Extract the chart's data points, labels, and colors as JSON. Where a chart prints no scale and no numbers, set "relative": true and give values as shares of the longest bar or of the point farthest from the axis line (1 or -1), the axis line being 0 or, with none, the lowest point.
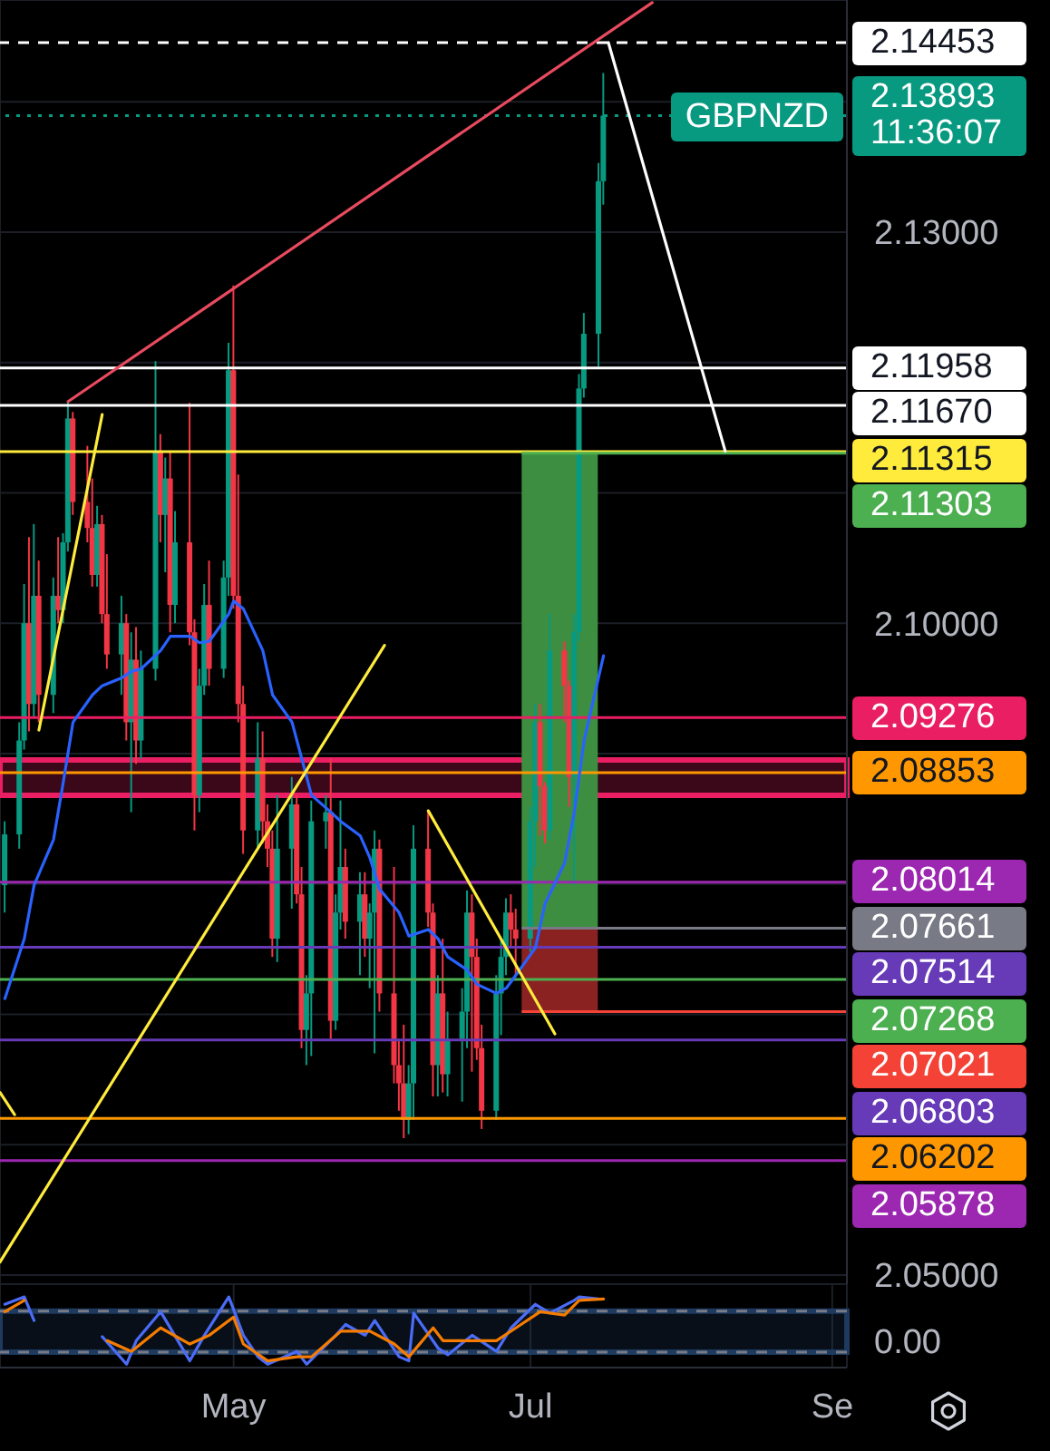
{
  "chart_data": [
    {
      "type": "candlestick",
      "tick_labels": "y",
      "grid": true,
      "xlim": [
        "--03-14",
        "--09-04"
      ],
      "xticks": [
        {
          "value": "--05-01",
          "label": "May"
        },
        {
          "value": "--07-01",
          "label": "Jul"
        },
        {
          "value": "--09-01",
          "label": "Se"
        }
      ],
      "ylim": [
        2.0493,
        2.1478
      ],
      "yticks": [
        {
          "value": 2.05,
          "label": "2.05000"
        },
        {
          "value": 2.06,
          "label": null
        },
        {
          "value": 2.07,
          "label": null
        },
        {
          "value": 2.08,
          "label": null
        },
        {
          "value": 2.09,
          "label": null
        },
        {
          "value": 2.1,
          "label": "2.10000"
        },
        {
          "value": 2.11,
          "label": null
        },
        {
          "value": 2.12,
          "label": null
        },
        {
          "value": 2.13,
          "label": "2.13000"
        },
        {
          "value": 2.14,
          "label": null
        }
      ],
      "x": [
        "--03-15",
        "--03-18",
        "--03-19",
        "--03-20",
        "--03-21",
        "--03-22",
        "--03-25",
        "--03-26",
        "--03-27",
        "--03-28",
        "--03-29",
        "--04-01",
        "--04-02",
        "--04-03",
        "--04-04",
        "--04-05",
        "--04-08",
        "--04-09",
        "--04-10",
        "--04-11",
        "--04-12",
        "--04-15",
        "--04-16",
        "--04-17",
        "--04-18",
        "--04-19",
        "--04-22",
        "--04-23",
        "--04-24",
        "--04-25",
        "--04-26",
        "--04-29",
        "--04-30",
        "--05-01",
        "--05-02",
        "--05-03",
        "--05-06",
        "--05-07",
        "--05-08",
        "--05-09",
        "--05-10",
        "--05-13",
        "--05-14",
        "--05-15",
        "--05-16",
        "--05-17",
        "--05-20",
        "--05-21",
        "--05-22",
        "--05-23",
        "--05-24",
        "--05-27",
        "--05-28",
        "--05-29",
        "--05-30",
        "--05-31",
        "--06-03",
        "--06-04",
        "--06-05",
        "--06-06",
        "--06-07",
        "--06-10",
        "--06-11",
        "--06-12",
        "--06-13",
        "--06-14",
        "--06-17",
        "--06-18",
        "--06-19",
        "--06-20",
        "--06-21",
        "--06-24",
        "--06-25",
        "--06-26",
        "--06-27",
        "--06-28",
        "--07-01",
        "--07-02",
        "--07-03",
        "--07-04",
        "--07-05",
        "--07-08",
        "--07-09",
        "--07-10",
        "--07-11",
        "--07-12",
        "--07-15",
        "--07-16"
      ],
      "ohlc": [
        [
          2.0799,
          2.0848,
          2.0778,
          2.0838
        ],
        [
          2.0838,
          2.0924,
          2.0827,
          2.091
        ],
        [
          2.091,
          2.103,
          2.0903,
          2.1
        ],
        [
          2.1,
          2.1066,
          2.0917,
          2.0938
        ],
        [
          2.0938,
          2.1076,
          2.0927,
          2.1021
        ],
        [
          2.1021,
          2.1048,
          2.0924,
          2.0945
        ],
        [
          2.0945,
          2.1035,
          2.0931,
          2.1021
        ],
        [
          2.1021,
          2.1066,
          2.1,
          2.101
        ],
        [
          2.101,
          2.1069,
          2.1,
          2.1062
        ],
        [
          2.1062,
          2.117,
          2.1055,
          2.1157
        ],
        [
          2.1157,
          2.1162,
          2.1083,
          2.1093
        ],
        [
          2.1093,
          2.1136,
          2.1062,
          2.1073
        ],
        [
          2.1073,
          2.1111,
          2.1028,
          2.1037
        ],
        [
          2.1037,
          2.109,
          2.1028,
          2.1076
        ],
        [
          2.1076,
          2.1083,
          2.1,
          2.1007
        ],
        [
          2.1007,
          2.1053,
          2.0965,
          2.0976
        ],
        [
          2.0976,
          2.1021,
          2.0945,
          2.1
        ],
        [
          2.1,
          2.1007,
          2.091,
          2.0924
        ],
        [
          2.0924,
          2.0993,
          2.0855,
          2.0972
        ],
        [
          2.0972,
          2.0997,
          2.0892,
          2.091
        ],
        [
          2.091,
          2.0979,
          2.0896,
          2.0965
        ],
        [
          2.0965,
          2.1201,
          2.0956,
          2.1132
        ],
        [
          2.1132,
          2.1145,
          2.1062,
          2.1083
        ],
        [
          2.1083,
          2.1127,
          2.1039,
          2.1111
        ],
        [
          2.1111,
          2.1132,
          2.0993,
          2.1014
        ],
        [
          2.1014,
          2.1086,
          2.1,
          2.1062
        ],
        [
          2.1062,
          2.1169,
          2.0983,
          2.0993
        ],
        [
          2.0993,
          2.1003,
          2.0841,
          2.0868
        ],
        [
          2.0868,
          2.0965,
          2.0855,
          2.0952
        ],
        [
          2.0952,
          2.103,
          2.0945,
          2.1014
        ],
        [
          2.1014,
          2.1048,
          2.0952,
          2.0965
        ],
        [
          2.0965,
          2.1048,
          2.0958,
          2.1035
        ],
        [
          2.1035,
          2.1215,
          2.1021,
          2.1194
        ],
        [
          2.1194,
          2.1259,
          2.1011,
          2.1021
        ],
        [
          2.1021,
          2.1114,
          2.0924,
          2.0938
        ],
        [
          2.0938,
          2.0952,
          2.0823,
          2.0841
        ],
        [
          2.0841,
          2.0924,
          2.0827,
          2.0896
        ],
        [
          2.0896,
          2.0917,
          2.0831,
          2.0848
        ],
        [
          2.0848,
          2.0861,
          2.0813,
          2.0827
        ],
        [
          2.0827,
          2.0841,
          2.0744,
          2.0758
        ],
        [
          2.0758,
          2.0868,
          2.074,
          2.0827
        ],
        [
          2.0827,
          2.0882,
          2.0781,
          2.0861
        ],
        [
          2.0861,
          2.0868,
          2.0785,
          2.0792
        ],
        [
          2.0792,
          2.0813,
          2.0674,
          2.0688
        ],
        [
          2.0688,
          2.073,
          2.0661,
          2.0716
        ],
        [
          2.0716,
          2.0864,
          2.0668,
          2.0848
        ],
        [
          2.0848,
          2.0868,
          2.0827,
          2.0855
        ],
        [
          2.0855,
          2.0896,
          2.0681,
          2.0695
        ],
        [
          2.0695,
          2.0792,
          2.0688,
          2.0778
        ],
        [
          2.0778,
          2.0864,
          2.0765,
          2.0813
        ],
        [
          2.0813,
          2.0827,
          2.0758,
          2.0771
        ],
        [
          2.0771,
          2.0809,
          2.073,
          2.0792
        ],
        [
          2.0792,
          2.0809,
          2.0744,
          2.0758
        ],
        [
          2.0758,
          2.0785,
          2.072,
          2.0778
        ],
        [
          2.0778,
          2.0841,
          2.067,
          2.0827
        ],
        [
          2.0827,
          2.0834,
          2.0702,
          2.0716
        ],
        [
          2.0716,
          2.0813,
          2.0647,
          2.0661
        ],
        [
          2.0661,
          2.0681,
          2.0626,
          2.0647
        ],
        [
          2.0647,
          2.0692,
          2.0605,
          2.0619
        ],
        [
          2.0619,
          2.0661,
          2.0608,
          2.0647
        ],
        [
          2.0647,
          2.0845,
          2.0619,
          2.0827
        ],
        [
          2.0827,
          2.0857,
          2.0767,
          2.0778
        ],
        [
          2.0778,
          2.0785,
          2.0637,
          2.0661
        ],
        [
          2.0661,
          2.073,
          2.0637,
          2.0716
        ],
        [
          2.0716,
          2.0758,
          2.064,
          2.0654
        ],
        [
          2.0654,
          2.0702,
          2.0637,
          2.0681
        ],
        [
          2.0681,
          2.072,
          2.0633,
          2.0702
        ],
        [
          2.0702,
          2.0795,
          2.0674,
          2.0778
        ],
        [
          2.0778,
          2.0792,
          2.0656,
          2.0744
        ],
        [
          2.0744,
          2.0758,
          2.0665,
          2.0674
        ],
        [
          2.0674,
          2.0692,
          2.0612,
          2.0626
        ],
        [
          2.0626,
          2.073,
          2.0619,
          2.0716
        ],
        [
          2.0716,
          2.0758,
          2.0684,
          2.0744
        ],
        [
          2.0744,
          2.0789,
          2.073,
          2.0778
        ],
        [
          2.0778,
          2.0792,
          2.0751,
          2.0765
        ],
        [
          2.0765,
          2.0781,
          2.073,
          2.0758
        ],
        [
          2.0758,
          2.0859,
          2.0748,
          2.0848
        ],
        [
          2.0848,
          2.0938,
          2.0813,
          2.0924
        ],
        [
          2.0924,
          2.0938,
          2.0837,
          2.0875
        ],
        [
          2.0875,
          2.0878,
          2.0831,
          2.0841
        ],
        [
          2.0841,
          2.1007,
          2.0834,
          2.0979
        ],
        [
          2.0979,
          2.0986,
          2.0924,
          2.0952
        ],
        [
          2.0952,
          2.0956,
          2.0859,
          2.0882
        ],
        [
          2.0882,
          2.1007,
          2.0799,
          2.0993
        ],
        [
          2.0993,
          2.1191,
          2.0986,
          2.118
        ],
        [
          2.118,
          2.1238,
          2.1173,
          2.1222
        ],
        [
          2.1222,
          2.1353,
          2.1197,
          2.1339
        ],
        [
          2.1339,
          2.1422,
          2.1321,
          2.13893
        ]
      ],
      "colors": [
        "#089981",
        "#089981",
        "#089981",
        "#f23645",
        "#089981",
        "#f23645",
        "#089981",
        "#f23645",
        "#089981",
        "#089981",
        "#f23645",
        "#f23645",
        "#f23645",
        "#089981",
        "#f23645",
        "#f23645",
        "#089981",
        "#f23645",
        "#089981",
        "#f23645",
        "#089981",
        "#089981",
        "#f23645",
        "#089981",
        "#f23645",
        "#089981",
        "#f23645",
        "#f23645",
        "#089981",
        "#089981",
        "#f23645",
        "#089981",
        "#089981",
        "#f23645",
        "#f23645",
        "#f23645",
        "#089981",
        "#f23645",
        "#f23645",
        "#f23645",
        "#089981",
        "#089981",
        "#f23645",
        "#f23645",
        "#089981",
        "#089981",
        "#089981",
        "#f23645",
        "#089981",
        "#089981",
        "#f23645",
        "#089981",
        "#f23645",
        "#089981",
        "#089981",
        "#f23645",
        "#f23645",
        "#f23645",
        "#f23645",
        "#089981",
        "#089981",
        "#f23645",
        "#f23645",
        "#089981",
        "#f23645",
        "#089981",
        "#089981",
        "#089981",
        "#f23645",
        "#f23645",
        "#f23645",
        "#089981",
        "#089981",
        "#089981",
        "#f23645",
        "#f23645",
        "#089981",
        "#089981",
        "#f23645",
        "#f23645",
        "#089981",
        "#f23645",
        "#f23645",
        "#089981",
        "#089981",
        "#089981",
        "#089981",
        "#089981"
      ],
      "series": [
        {
          "type": "bar",
          "color": "#3e8e41",
          "x": [
            "--07-07"
          ],
          "base": [
            2.07661
          ],
          "values": [
            0.03642
          ]
        },
        {
          "type": "bar",
          "color": "#8b2222",
          "x": [
            "--07-07"
          ],
          "base": [
            2.07021
          ],
          "values": [
            0.0064
          ]
        },
        {
          "type": "line",
          "color": "#2962ff",
          "x": [
            "--03-15",
            "--03-19",
            "--03-21",
            "--03-25",
            "--03-27",
            "--03-29",
            "--04-02",
            "--04-04",
            "--04-08",
            "--04-10",
            "--04-12",
            "--04-16",
            "--04-18",
            "--04-22",
            "--04-24",
            "--04-26",
            "--04-30",
            "--05-01",
            "--05-03",
            "--05-07",
            "--05-09",
            "--05-13",
            "--05-15",
            "--05-17",
            "--05-21",
            "--05-23",
            "--05-27",
            "--05-29",
            "--05-31",
            "--06-04",
            "--06-06",
            "--06-10",
            "--06-12",
            "--06-14",
            "--06-18",
            "--06-20",
            "--06-24",
            "--06-26",
            "--06-28",
            "--07-02",
            "--07-04",
            "--07-08",
            "--07-10",
            "--07-12",
            "--07-16"
          ],
          "values": [
            2.0712,
            2.0758,
            2.0799,
            2.0834,
            2.0878,
            2.0924,
            2.0945,
            2.0952,
            2.0958,
            2.0963,
            2.0965,
            2.0979,
            2.099,
            2.099,
            2.0985,
            2.0986,
            2.1007,
            2.1017,
            2.1011,
            2.0979,
            2.0945,
            2.0924,
            2.0896,
            2.0868,
            2.0855,
            2.0848,
            2.0837,
            2.082,
            2.0796,
            2.0778,
            2.076,
            2.0765,
            2.0758,
            2.0744,
            2.0734,
            2.0723,
            2.0716,
            2.072,
            2.073,
            2.0751,
            2.0785,
            2.0816,
            2.0855,
            2.091,
            2.0975
          ]
        },
        {
          "type": "line",
          "color": "#e84a5f",
          "x": [
            "--03-28",
            "--07-26"
          ],
          "values": [
            2.117,
            2.1476
          ]
        },
        {
          "type": "line",
          "color": "#ffeb3b",
          "x": [
            "--03-22",
            "--04-04"
          ],
          "values": [
            2.0918,
            2.116
          ]
        },
        {
          "type": "line",
          "color": "#ffeb3b",
          "x": [
            "--03-14",
            "--06-01"
          ],
          "values": [
            2.051,
            2.0983
          ]
        },
        {
          "type": "line",
          "color": "#ffeb3b",
          "x": [
            "--06-10",
            "--07-06"
          ],
          "values": [
            2.0856,
            2.0685
          ]
        },
        {
          "type": "line",
          "color": "#ffeb3b",
          "x": [
            "--03-14",
            "--03-17"
          ],
          "values": [
            2.064,
            2.0623
          ]
        },
        {
          "type": "line",
          "color": "#ffffff",
          "x": [
            "--07-17",
            "--08-10"
          ],
          "values": [
            2.14453,
            2.1132
          ]
        }
      ],
      "bands": [
        {
          "axis": "y",
          "from": 2.0868,
          "to": 2.0895,
          "color": "#e91e63"
        }
      ],
      "ref_lines": [
        {
          "axis": "y",
          "value": 2.14453,
          "label": "2.14453",
          "color": "#ffffff",
          "line_style": "dashed"
        },
        {
          "axis": "y",
          "value": 2.13893,
          "label": "2.13893",
          "color": "#089981",
          "line_style": "dotted"
        },
        {
          "axis": "y",
          "value": 2.11958,
          "label": "2.11958",
          "color": "#ffffff",
          "line_style": "solid"
        },
        {
          "axis": "y",
          "value": 2.1167,
          "label": "2.11670",
          "color": "#ffffff",
          "line_style": "solid"
        },
        {
          "axis": "y",
          "value": 2.11315,
          "label": "2.11315",
          "color": "#ffeb3b",
          "line_style": "solid"
        },
        {
          "axis": "y",
          "value": 2.11303,
          "label": "2.11303",
          "color": "#4caf50",
          "line_style": "solid"
        },
        {
          "axis": "y",
          "value": 2.09276,
          "label": "2.09276",
          "color": "#e91e63",
          "line_style": "solid"
        },
        {
          "axis": "y",
          "value": 2.08853,
          "label": "2.08853",
          "color": "#ff9800",
          "line_style": "solid"
        },
        {
          "axis": "y",
          "value": 2.08014,
          "label": "2.08014",
          "color": "#9c27b0",
          "line_style": "solid"
        },
        {
          "axis": "y",
          "value": 2.07661,
          "label": "2.07661",
          "color": "#787b86",
          "line_style": "solid"
        },
        {
          "axis": "y",
          "value": 2.07514,
          "label": "2.07514",
          "color": "#673ab7",
          "line_style": "solid"
        },
        {
          "axis": "y",
          "value": 2.07268,
          "label": "2.07268",
          "color": "#4caf50",
          "line_style": "solid"
        },
        {
          "axis": "y",
          "value": 2.07021,
          "label": "2.07021",
          "color": "#f44336",
          "line_style": "solid"
        },
        {
          "axis": "y",
          "value": 2.06803,
          "label": "2.06803",
          "color": "#673ab7",
          "line_style": "solid"
        },
        {
          "axis": "y",
          "value": 2.06202,
          "label": "2.06202",
          "color": "#ff9800",
          "line_style": "solid"
        },
        {
          "axis": "y",
          "value": 2.05878,
          "label": "2.05878",
          "color": "#9c27b0",
          "line_style": "solid"
        }
      ],
      "annotations": [
        {
          "text": "GBPNZD",
          "y": 2.13893
        },
        "11:36:07"
      ]
    },
    {
      "type": "line",
      "relative": true,
      "tick_labels": "x",
      "grid": "x",
      "xlim": [
        "--03-14",
        "--09-04"
      ],
      "xticks": [
        {
          "value": "--05-01",
          "label": "May"
        },
        {
          "value": "--07-01",
          "label": "Jul"
        },
        {
          "value": "--09-01",
          "label": "Se"
        }
      ],
      "series": [
        {
          "color": "#4a6cf7",
          "x": [
            "--03-15",
            "--03-19",
            "--03-21",
            "--03-26",
            "--04-04",
            "--04-09",
            "--04-11",
            "--04-16",
            "--04-22",
            "--04-25",
            "--04-30",
            "--05-03",
            "--05-06",
            "--05-08",
            "--05-14",
            "--05-16",
            "--05-22",
            "--05-24",
            "--05-28",
            "--05-30",
            "--06-04",
            "--06-06",
            "--06-07",
            "--06-12",
            "--06-14",
            "--06-19",
            "--06-24",
            "--06-27",
            "--07-02",
            "--07-05",
            "--07-10",
            "--07-11",
            "--07-15"
          ],
          "values": [
            0.89,
            1.0,
            0.65,
            null,
            0.41,
            0,
            0.35,
            0.78,
            0.05,
            0.43,
            1.0,
            0.43,
            0.11,
            0,
            0.19,
            0,
            0.43,
            0.59,
            0.43,
            0.65,
            0.11,
            0.05,
            0.76,
            0.24,
            0.14,
            0.43,
            0.19,
            0.54,
            0.89,
            0.76,
            0.95,
            1.0,
            0.97
          ]
        },
        {
          "color": "#f57c00",
          "x": [
            "--03-15",
            "--03-19",
            "--03-26",
            "--04-05",
            "--04-10",
            "--04-16",
            "--04-22",
            "--04-26",
            "--05-01",
            "--05-03",
            "--05-08",
            "--05-14",
            "--05-17",
            "--05-23",
            "--05-29",
            "--06-03",
            "--06-06",
            "--06-11",
            "--06-13",
            "--06-18",
            "--06-24",
            "--06-28",
            "--07-03",
            "--07-08",
            "--07-11",
            "--07-16"
          ],
          "values": [
            0.78,
            0.95,
            null,
            0.35,
            0.19,
            0.54,
            0.3,
            0.43,
            0.7,
            0.3,
            0.05,
            0.11,
            0.11,
            0.49,
            0.49,
            0.3,
            0.11,
            0.54,
            0.35,
            0.35,
            0.35,
            0.54,
            0.78,
            0.73,
            0.95,
            0.97
          ]
        }
      ],
      "bands": [
        {
          "axis": "y",
          "from": 0.18,
          "to": 0.79,
          "color": "#1e3a5f"
        }
      ],
      "ref_lines": [
        {
          "axis": "y",
          "value": 0.79,
          "color": "#787b86",
          "line_style": "dashed"
        },
        {
          "axis": "y",
          "value": 0.18,
          "color": "#787b86",
          "line_style": "dashed"
        }
      ],
      "annotations": [
        "0.00"
      ]
    }
  ]
}
